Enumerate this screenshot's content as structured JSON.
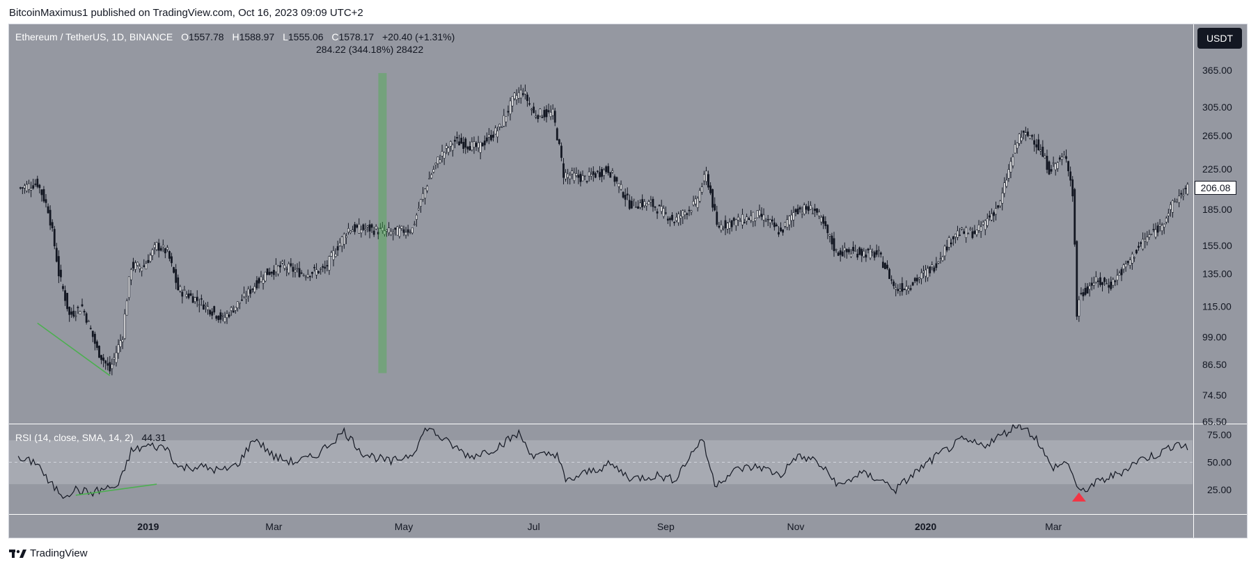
{
  "header": {
    "publisher_line": "BitcoinMaximus1 published on TradingView.com, Oct 16, 2023 09:09 UTC+2"
  },
  "legend": {
    "symbol": "Ethereum / TetherUS, 1D, BINANCE",
    "o_label": "O",
    "o": "1557.78",
    "h_label": "H",
    "h": "1588.97",
    "l_label": "L",
    "l": "1555.06",
    "c_label": "C",
    "c": "1578.17",
    "change": "+20.40 (+1.31%)",
    "measure": "284.22 (344.18%) 28422"
  },
  "currency_button": "USDT",
  "last_price": "206.08",
  "rsi_legend": {
    "label": "RSI (14, close, SMA, 14, 2)",
    "value": "44.31"
  },
  "footer": {
    "brand": "TradingView"
  },
  "colors": {
    "background": "#9598a1",
    "candle": "#131722",
    "green": "#4caf50",
    "red": "#f23645",
    "band": "#a7aab2"
  },
  "chart_data": {
    "type": "line",
    "price_pane": {
      "scale": "log",
      "y_ticks": [
        365.0,
        305.0,
        265.0,
        225.0,
        185.0,
        155.0,
        135.0,
        115.0,
        99.0,
        86.5,
        74.5,
        65.5
      ],
      "y_tick_labels": [
        "365.00",
        "305.00",
        "265.00",
        "225.00",
        "185.00",
        "155.00",
        "135.00",
        "115.00",
        "99.00",
        "86.50",
        "74.50",
        "65.50"
      ],
      "close_series": [
        {
          "x": "2018-11-01",
          "y": 205
        },
        {
          "x": "2018-11-10",
          "y": 210
        },
        {
          "x": "2018-11-15",
          "y": 185
        },
        {
          "x": "2018-11-20",
          "y": 135
        },
        {
          "x": "2018-11-25",
          "y": 110
        },
        {
          "x": "2018-12-01",
          "y": 115
        },
        {
          "x": "2018-12-08",
          "y": 93
        },
        {
          "x": "2018-12-14",
          "y": 84
        },
        {
          "x": "2018-12-20",
          "y": 100
        },
        {
          "x": "2018-12-24",
          "y": 140
        },
        {
          "x": "2018-12-30",
          "y": 140
        },
        {
          "x": "2019-01-05",
          "y": 155
        },
        {
          "x": "2019-01-10",
          "y": 150
        },
        {
          "x": "2019-01-15",
          "y": 125
        },
        {
          "x": "2019-01-25",
          "y": 118
        },
        {
          "x": "2019-02-05",
          "y": 108
        },
        {
          "x": "2019-02-15",
          "y": 120
        },
        {
          "x": "2019-02-25",
          "y": 135
        },
        {
          "x": "2019-03-05",
          "y": 140
        },
        {
          "x": "2019-03-15",
          "y": 135
        },
        {
          "x": "2019-03-25",
          "y": 138
        },
        {
          "x": "2019-04-05",
          "y": 168
        },
        {
          "x": "2019-04-15",
          "y": 168
        },
        {
          "x": "2019-04-25",
          "y": 165
        },
        {
          "x": "2019-05-05",
          "y": 168
        },
        {
          "x": "2019-05-12",
          "y": 210
        },
        {
          "x": "2019-05-18",
          "y": 240
        },
        {
          "x": "2019-05-25",
          "y": 258
        },
        {
          "x": "2019-06-05",
          "y": 250
        },
        {
          "x": "2019-06-15",
          "y": 275
        },
        {
          "x": "2019-06-22",
          "y": 320
        },
        {
          "x": "2019-06-26",
          "y": 330
        },
        {
          "x": "2019-07-01",
          "y": 295
        },
        {
          "x": "2019-07-10",
          "y": 295
        },
        {
          "x": "2019-07-15",
          "y": 220
        },
        {
          "x": "2019-07-25",
          "y": 215
        },
        {
          "x": "2019-08-05",
          "y": 225
        },
        {
          "x": "2019-08-15",
          "y": 190
        },
        {
          "x": "2019-08-25",
          "y": 190
        },
        {
          "x": "2019-09-05",
          "y": 175
        },
        {
          "x": "2019-09-15",
          "y": 190
        },
        {
          "x": "2019-09-20",
          "y": 220
        },
        {
          "x": "2019-09-25",
          "y": 170
        },
        {
          "x": "2019-10-05",
          "y": 175
        },
        {
          "x": "2019-10-15",
          "y": 180
        },
        {
          "x": "2019-10-25",
          "y": 165
        },
        {
          "x": "2019-11-01",
          "y": 185
        },
        {
          "x": "2019-11-10",
          "y": 185
        },
        {
          "x": "2019-11-20",
          "y": 150
        },
        {
          "x": "2019-12-01",
          "y": 150
        },
        {
          "x": "2019-12-10",
          "y": 148
        },
        {
          "x": "2019-12-18",
          "y": 125
        },
        {
          "x": "2019-12-25",
          "y": 128
        },
        {
          "x": "2020-01-05",
          "y": 140
        },
        {
          "x": "2020-01-15",
          "y": 165
        },
        {
          "x": "2020-01-25",
          "y": 165
        },
        {
          "x": "2020-02-05",
          "y": 190
        },
        {
          "x": "2020-02-14",
          "y": 265
        },
        {
          "x": "2020-02-20",
          "y": 265
        },
        {
          "x": "2020-02-28",
          "y": 225
        },
        {
          "x": "2020-03-07",
          "y": 240
        },
        {
          "x": "2020-03-10",
          "y": 200
        },
        {
          "x": "2020-03-12",
          "y": 110
        },
        {
          "x": "2020-03-13",
          "y": 120
        },
        {
          "x": "2020-03-20",
          "y": 130
        },
        {
          "x": "2020-03-28",
          "y": 128
        },
        {
          "x": "2020-04-05",
          "y": 142
        },
        {
          "x": "2020-04-12",
          "y": 158
        },
        {
          "x": "2020-04-20",
          "y": 170
        },
        {
          "x": "2020-04-28",
          "y": 195
        },
        {
          "x": "2020-05-03",
          "y": 206
        }
      ]
    },
    "rsi_pane": {
      "y_ticks": [
        75.0,
        50.0,
        25.0
      ],
      "y_tick_labels": [
        "75.00",
        "50.00",
        "25.00"
      ],
      "band": [
        30,
        70
      ],
      "series": [
        {
          "x": "2018-11-01",
          "y": 52
        },
        {
          "x": "2018-11-10",
          "y": 50
        },
        {
          "x": "2018-11-15",
          "y": 32
        },
        {
          "x": "2018-11-22",
          "y": 20
        },
        {
          "x": "2018-11-28",
          "y": 25
        },
        {
          "x": "2018-12-05",
          "y": 22
        },
        {
          "x": "2018-12-12",
          "y": 26
        },
        {
          "x": "2018-12-18",
          "y": 28
        },
        {
          "x": "2018-12-24",
          "y": 60
        },
        {
          "x": "2019-01-01",
          "y": 65
        },
        {
          "x": "2019-01-10",
          "y": 63
        },
        {
          "x": "2019-01-15",
          "y": 45
        },
        {
          "x": "2019-01-25",
          "y": 46
        },
        {
          "x": "2019-02-05",
          "y": 42
        },
        {
          "x": "2019-02-12",
          "y": 48
        },
        {
          "x": "2019-02-20",
          "y": 72
        },
        {
          "x": "2019-03-01",
          "y": 55
        },
        {
          "x": "2019-03-10",
          "y": 50
        },
        {
          "x": "2019-03-20",
          "y": 55
        },
        {
          "x": "2019-04-03",
          "y": 78
        },
        {
          "x": "2019-04-12",
          "y": 58
        },
        {
          "x": "2019-04-25",
          "y": 50
        },
        {
          "x": "2019-05-05",
          "y": 58
        },
        {
          "x": "2019-05-12",
          "y": 82
        },
        {
          "x": "2019-05-20",
          "y": 70
        },
        {
          "x": "2019-06-01",
          "y": 55
        },
        {
          "x": "2019-06-12",
          "y": 62
        },
        {
          "x": "2019-06-24",
          "y": 76
        },
        {
          "x": "2019-07-01",
          "y": 55
        },
        {
          "x": "2019-07-12",
          "y": 58
        },
        {
          "x": "2019-07-16",
          "y": 32
        },
        {
          "x": "2019-07-25",
          "y": 40
        },
        {
          "x": "2019-08-06",
          "y": 48
        },
        {
          "x": "2019-08-16",
          "y": 35
        },
        {
          "x": "2019-08-28",
          "y": 38
        },
        {
          "x": "2019-09-05",
          "y": 34
        },
        {
          "x": "2019-09-18",
          "y": 72
        },
        {
          "x": "2019-09-24",
          "y": 30
        },
        {
          "x": "2019-10-05",
          "y": 44
        },
        {
          "x": "2019-10-15",
          "y": 46
        },
        {
          "x": "2019-10-25",
          "y": 38
        },
        {
          "x": "2019-11-01",
          "y": 55
        },
        {
          "x": "2019-11-10",
          "y": 52
        },
        {
          "x": "2019-11-22",
          "y": 28
        },
        {
          "x": "2019-12-01",
          "y": 40
        },
        {
          "x": "2019-12-10",
          "y": 35
        },
        {
          "x": "2019-12-18",
          "y": 25
        },
        {
          "x": "2019-12-28",
          "y": 42
        },
        {
          "x": "2020-01-08",
          "y": 58
        },
        {
          "x": "2020-01-18",
          "y": 70
        },
        {
          "x": "2020-01-28",
          "y": 65
        },
        {
          "x": "2020-02-06",
          "y": 75
        },
        {
          "x": "2020-02-14",
          "y": 85
        },
        {
          "x": "2020-02-22",
          "y": 72
        },
        {
          "x": "2020-02-29",
          "y": 45
        },
        {
          "x": "2020-03-08",
          "y": 50
        },
        {
          "x": "2020-03-13",
          "y": 22
        },
        {
          "x": "2020-03-22",
          "y": 32
        },
        {
          "x": "2020-04-01",
          "y": 40
        },
        {
          "x": "2020-04-10",
          "y": 52
        },
        {
          "x": "2020-04-20",
          "y": 58
        },
        {
          "x": "2020-04-28",
          "y": 68
        },
        {
          "x": "2020-05-03",
          "y": 62
        }
      ]
    },
    "x_tick_labels": [
      {
        "x": "2019-01-01",
        "label": "2019"
      },
      {
        "x": "2019-03-01",
        "label": "Mar"
      },
      {
        "x": "2019-05-01",
        "label": "May"
      },
      {
        "x": "2019-07-01",
        "label": "Jul"
      },
      {
        "x": "2019-09-01",
        "label": "Sep"
      },
      {
        "x": "2019-11-01",
        "label": "Nov"
      },
      {
        "x": "2020-01-01",
        "label": "2020"
      },
      {
        "x": "2020-03-01",
        "label": "Mar"
      }
    ],
    "x_range": [
      "2018-10-28",
      "2020-05-05"
    ],
    "annotations": [
      {
        "type": "vertical-highlight",
        "x": "2019-04-21",
        "y_range": [
          83,
          360
        ],
        "color": "#4caf50"
      },
      {
        "type": "trendline",
        "pane": "price",
        "from": {
          "x": "2018-11-10",
          "y": 106
        },
        "to": {
          "x": "2018-12-14",
          "y": 82
        },
        "color": "#4caf50"
      },
      {
        "type": "trendline",
        "pane": "rsi",
        "from": {
          "x": "2018-11-28",
          "y": 20
        },
        "to": {
          "x": "2019-01-05",
          "y": 30
        },
        "color": "#4caf50"
      },
      {
        "type": "triangle-up",
        "pane": "rsi",
        "x": "2020-03-13",
        "y": 18,
        "color": "#f23645"
      }
    ]
  }
}
